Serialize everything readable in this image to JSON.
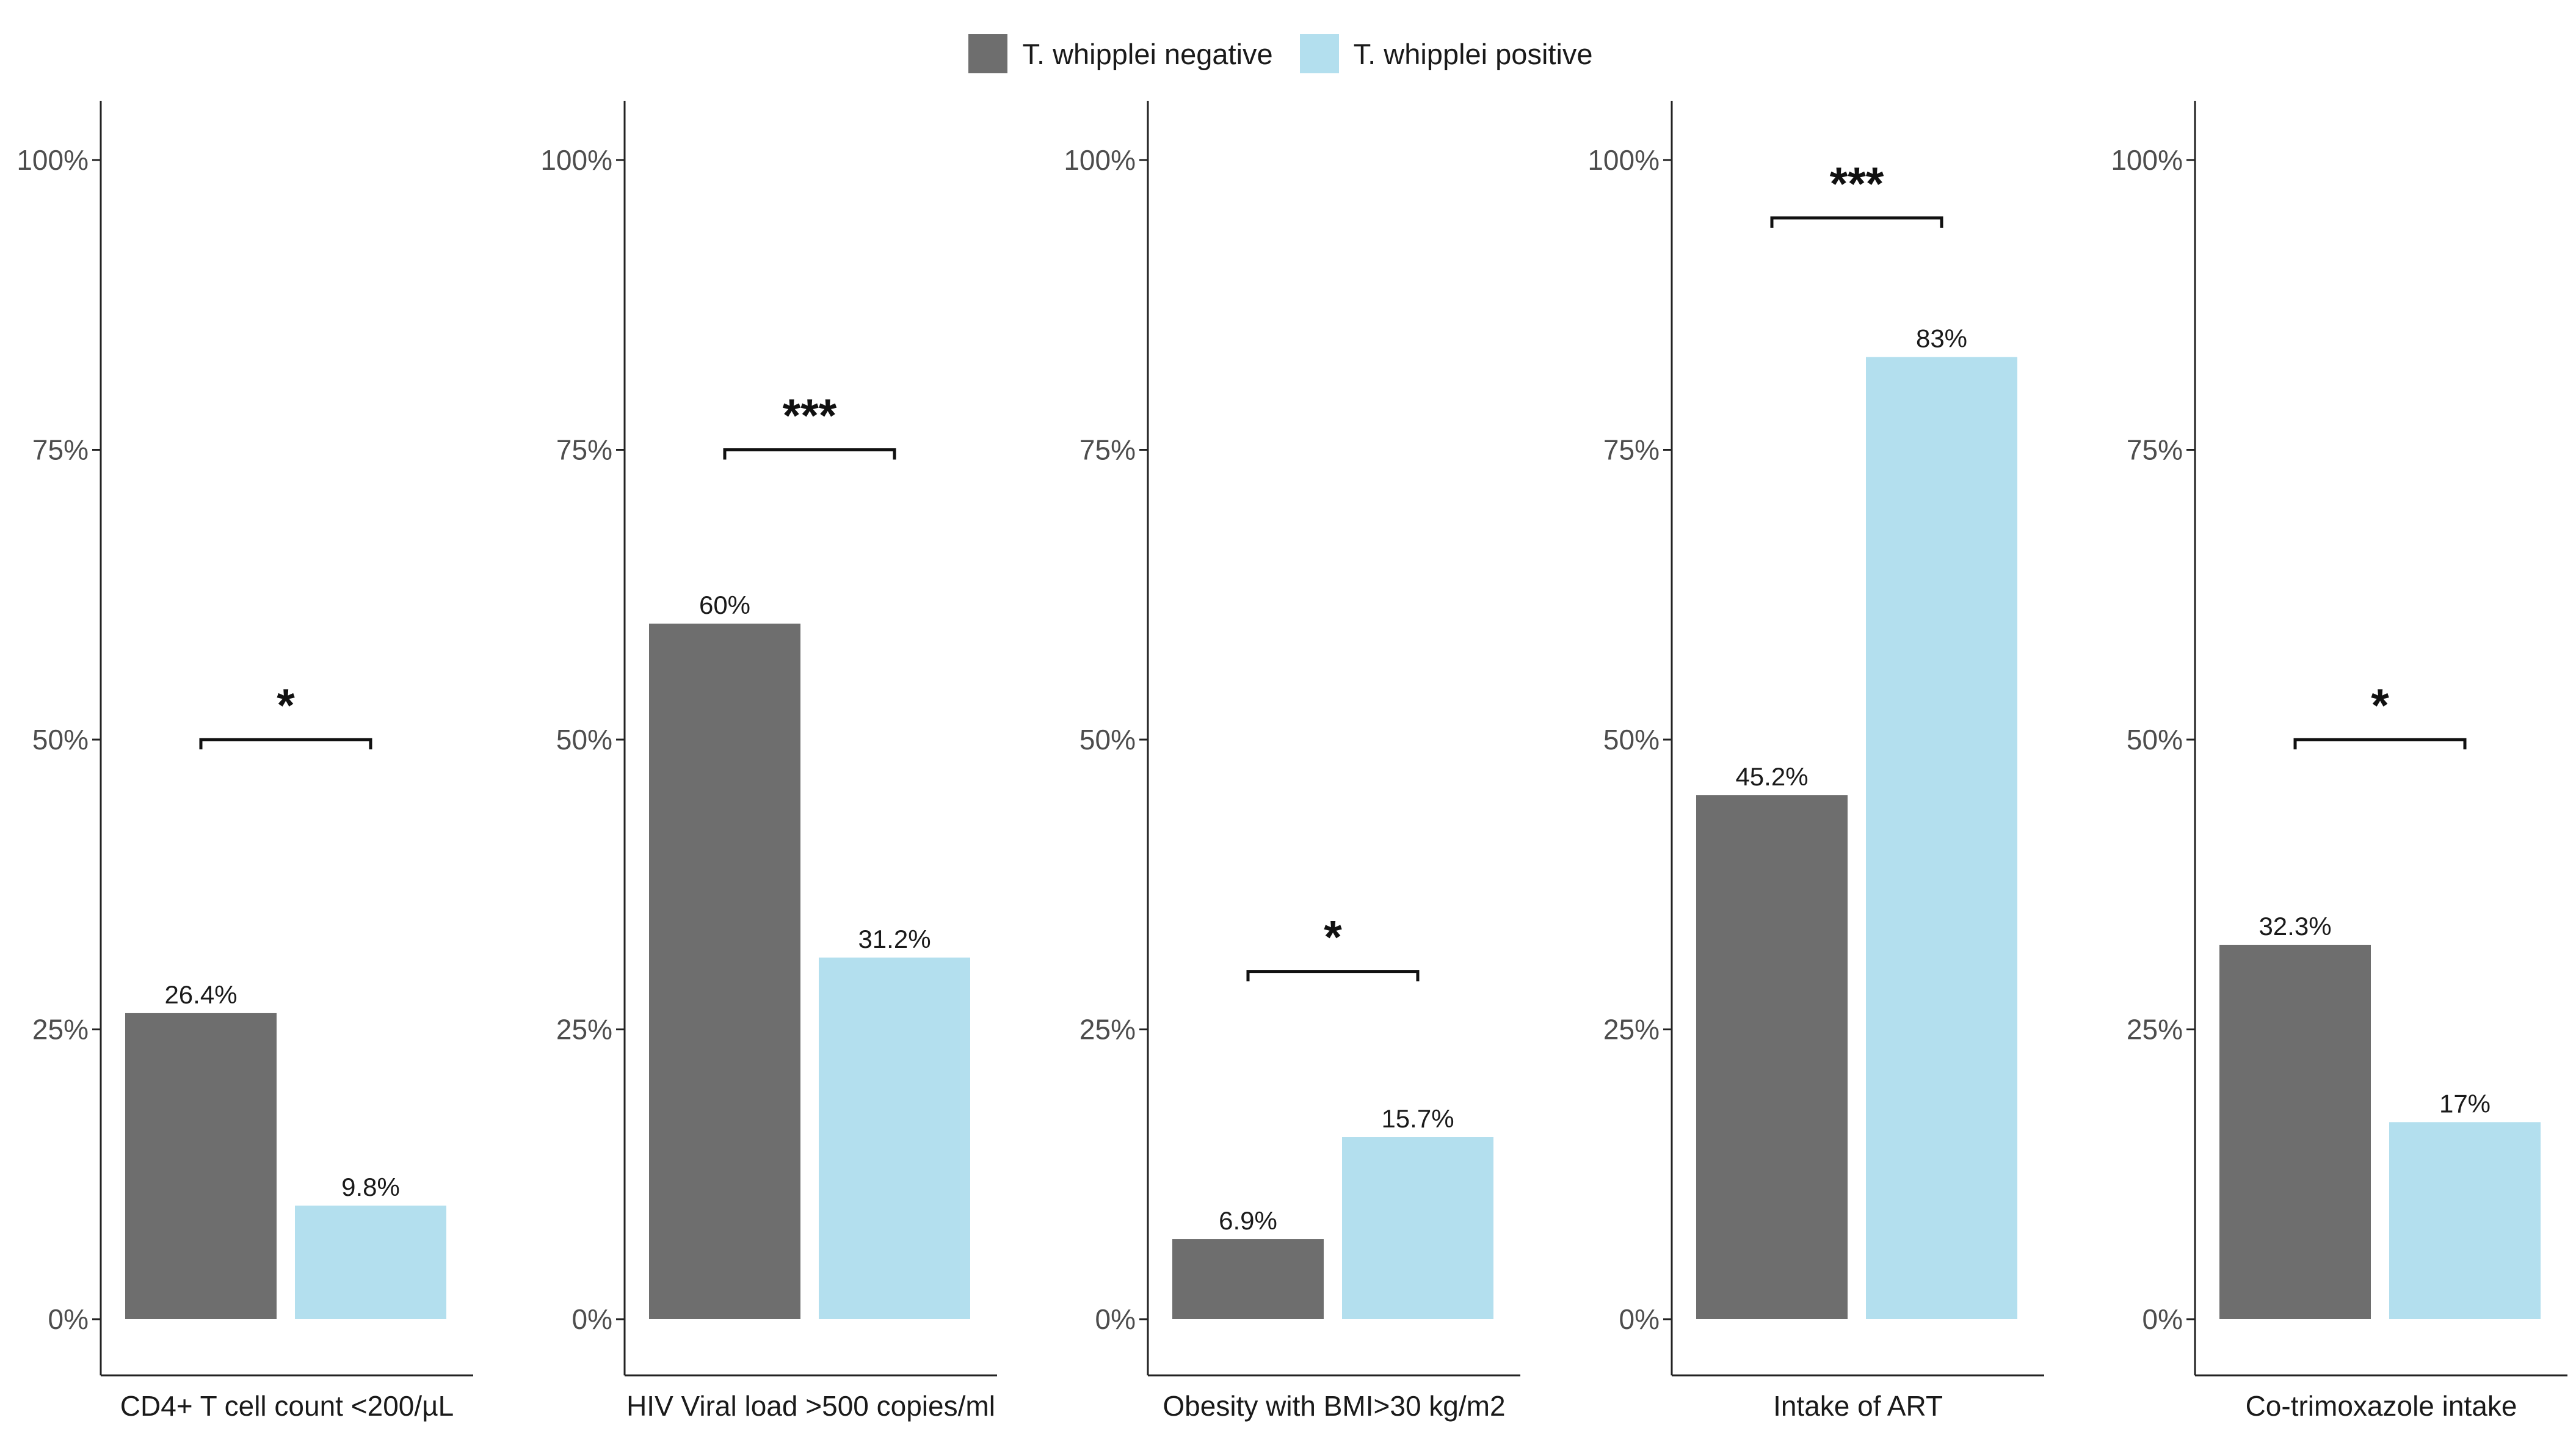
{
  "chart_data": {
    "type": "bar",
    "y_ticks": [
      "0%",
      "25%",
      "50%",
      "75%",
      "100%"
    ],
    "ylim": [
      0,
      100
    ],
    "legend": {
      "position": "top",
      "entries": [
        {
          "name": "T. whipplei negative",
          "color": "#6e6e6e"
        },
        {
          "name": "T. whipplei positive",
          "color": "#b3dfee"
        }
      ]
    },
    "panels": [
      {
        "xlabel": "CD4+ T cell count <200/µL",
        "values": [
          26.4,
          9.8
        ],
        "labels": [
          "26.4%",
          "9.8%"
        ],
        "significance": "*",
        "bracket_y": 50
      },
      {
        "xlabel": "HIV Viral load >500 copies/ml",
        "values": [
          60,
          31.2
        ],
        "labels": [
          "60%",
          "31.2%"
        ],
        "significance": "***",
        "bracket_y": 75
      },
      {
        "xlabel": "Obesity with BMI>30 kg/m2",
        "values": [
          6.9,
          15.7
        ],
        "labels": [
          "6.9%",
          "15.7%"
        ],
        "significance": "*",
        "bracket_y": 30
      },
      {
        "xlabel": "Intake of ART",
        "values": [
          45.2,
          83
        ],
        "labels": [
          "45.2%",
          "83%"
        ],
        "significance": "***",
        "bracket_y": 95
      },
      {
        "xlabel": "Co-trimoxazole intake",
        "values": [
          32.3,
          17
        ],
        "labels": [
          "32.3%",
          "17%"
        ],
        "significance": "*",
        "bracket_y": 50
      }
    ]
  }
}
